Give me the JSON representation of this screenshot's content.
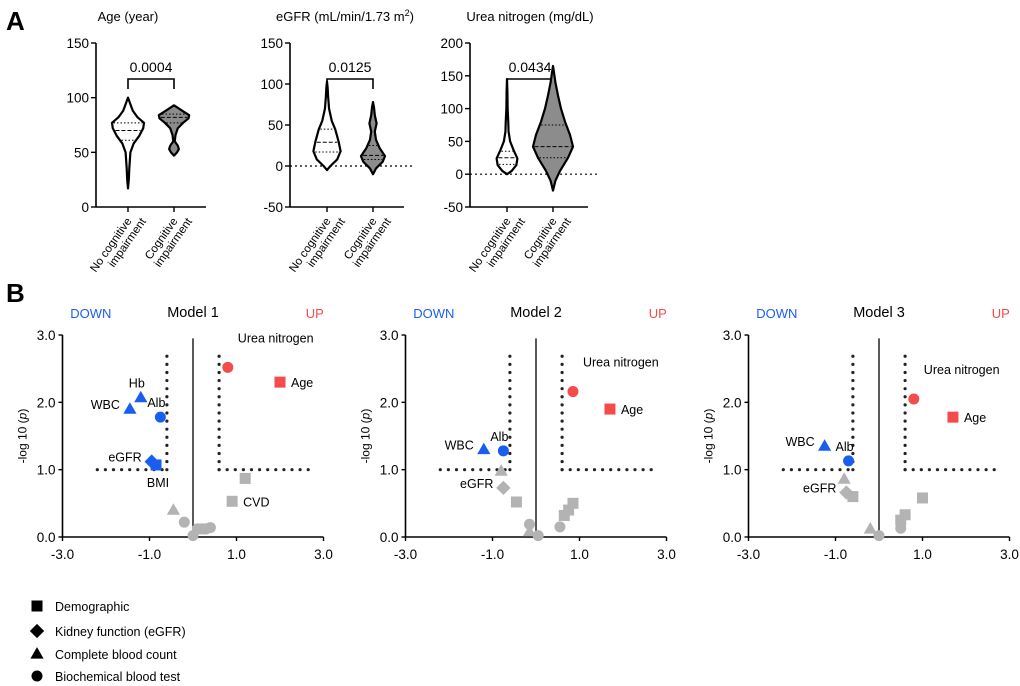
{
  "panel_labels": {
    "a": "A",
    "b": "B"
  },
  "colors": {
    "up": "#f44b4b",
    "down": "#1a5ef0",
    "ns": "#b3b3b3",
    "violin_ci": "#8c8c8c"
  },
  "chart_data": [
    {
      "type": "violin",
      "title": "Age (year)",
      "ylim": [
        0,
        150
      ],
      "yticks": [
        "0",
        "50",
        "100",
        "150"
      ],
      "ytick_values": [
        0,
        50,
        100,
        150
      ],
      "zero_line": false,
      "p_value": "0.0004",
      "groups": [
        {
          "name_line1": "No cognitive",
          "name_line2": "impairment",
          "filled": false,
          "median": 70,
          "q1": 61,
          "q3": 77,
          "peak": 1.0,
          "density": [
            [
              17,
              0
            ],
            [
              25,
              0.05
            ],
            [
              35,
              0.08
            ],
            [
              50,
              0.15
            ],
            [
              58,
              0.35
            ],
            [
              65,
              0.7
            ],
            [
              72,
              0.95
            ],
            [
              77,
              1
            ],
            [
              82,
              0.6
            ],
            [
              88,
              0.3
            ],
            [
              94,
              0.15
            ],
            [
              100,
              0
            ]
          ]
        },
        {
          "name_line1": "Cognitive",
          "name_line2": "impairment",
          "filled": true,
          "median": 82,
          "q1": 77,
          "q3": 85,
          "peak": 0.95,
          "density": [
            [
              47,
              0
            ],
            [
              50,
              0.2
            ],
            [
              53,
              0.32
            ],
            [
              56,
              0.25
            ],
            [
              60,
              0.05
            ],
            [
              66,
              0.1
            ],
            [
              72,
              0.25
            ],
            [
              77,
              0.6
            ],
            [
              81,
              0.95
            ],
            [
              84,
              1
            ],
            [
              88,
              0.55
            ],
            [
              93,
              0
            ]
          ]
        }
      ]
    },
    {
      "type": "violin",
      "title": "eGFR (mL/min/1.73 m",
      "title_sup": "2",
      "title_end": ")",
      "ylim": [
        -50,
        150
      ],
      "yticks": [
        "-50",
        "0",
        "50",
        "100",
        "150"
      ],
      "ytick_values": [
        -50,
        0,
        50,
        100,
        150
      ],
      "zero_line": true,
      "p_value": "0.0125",
      "groups": [
        {
          "name_line1": "No cognitive",
          "name_line2": "impairment",
          "filled": false,
          "median": 29,
          "q1": 17,
          "q3": 45,
          "peak": 0.85,
          "density": [
            [
              -5,
              0
            ],
            [
              0,
              0.25
            ],
            [
              8,
              0.75
            ],
            [
              18,
              1
            ],
            [
              30,
              0.85
            ],
            [
              45,
              0.6
            ],
            [
              55,
              0.35
            ],
            [
              70,
              0.15
            ],
            [
              85,
              0.08
            ],
            [
              95,
              0.05
            ],
            [
              103,
              0
            ]
          ]
        },
        {
          "name_line1": "Cognitive",
          "name_line2": "impairment",
          "filled": true,
          "median": 13,
          "q1": 8,
          "q3": 25,
          "peak": 0.75,
          "density": [
            [
              -10,
              0
            ],
            [
              -3,
              0.25
            ],
            [
              5,
              0.8
            ],
            [
              12,
              1
            ],
            [
              22,
              0.55
            ],
            [
              32,
              0.25
            ],
            [
              42,
              0.15
            ],
            [
              52,
              0.3
            ],
            [
              62,
              0.15
            ],
            [
              72,
              0.08
            ],
            [
              78,
              0
            ]
          ]
        }
      ]
    },
    {
      "type": "violin",
      "title": "Urea nitrogen (mg/dL)",
      "ylim": [
        -50,
        200
      ],
      "yticks": [
        "-50",
        "0",
        "50",
        "100",
        "150",
        "200"
      ],
      "ytick_values": [
        -50,
        0,
        50,
        100,
        150,
        200
      ],
      "zero_line": true,
      "p_value": "0.0434",
      "groups": [
        {
          "name_line1": "No cognitive",
          "name_line2": "impairment",
          "filled": false,
          "median": 25,
          "q1": 15,
          "q3": 35,
          "peak": 0.65,
          "density": [
            [
              0,
              0
            ],
            [
              5,
              0.45
            ],
            [
              14,
              0.9
            ],
            [
              24,
              1
            ],
            [
              36,
              0.65
            ],
            [
              50,
              0.3
            ],
            [
              65,
              0.15
            ],
            [
              80,
              0.12
            ],
            [
              100,
              0.06
            ],
            [
              125,
              0.04
            ],
            [
              145,
              0
            ]
          ]
        },
        {
          "name_line1": "Cognitive",
          "name_line2": "impairment",
          "filled": true,
          "median": 42,
          "q1": 25,
          "q3": 75,
          "peak": 1.25,
          "density": [
            [
              -25,
              0
            ],
            [
              -10,
              0.12
            ],
            [
              5,
              0.35
            ],
            [
              25,
              0.75
            ],
            [
              42,
              1
            ],
            [
              60,
              0.85
            ],
            [
              80,
              0.6
            ],
            [
              100,
              0.4
            ],
            [
              120,
              0.25
            ],
            [
              140,
              0.12
            ],
            [
              155,
              0.05
            ],
            [
              165,
              0
            ]
          ]
        }
      ]
    },
    {
      "type": "scatter",
      "title": "Model 1",
      "down_label": "DOWN",
      "up_label": "UP",
      "ylabel": "-log 10 (",
      "ylabel_italic": "p",
      "ylabel_end": ")",
      "xlim": [
        -3,
        3
      ],
      "ylim": [
        0,
        3
      ],
      "xticks": [
        "-3.0",
        "-1.0",
        "1.0",
        "3.0"
      ],
      "xtick_values": [
        -3,
        -1,
        1,
        3
      ],
      "yticks": [
        "0.0",
        "1.0",
        "2.0",
        "3.0"
      ],
      "ytick_values": [
        0,
        1,
        2,
        3
      ],
      "thresholds": {
        "x": [
          -0.6,
          0.6
        ],
        "y": 1.0
      },
      "points": [
        {
          "x": 0.8,
          "y": 2.52,
          "shape": "circle",
          "status": "up",
          "label": "Urea nitrogen",
          "label_side": "upper-right"
        },
        {
          "x": 2.0,
          "y": 2.3,
          "shape": "square",
          "status": "up",
          "label": "Age",
          "label_side": "right"
        },
        {
          "x": -1.2,
          "y": 2.07,
          "shape": "triangle",
          "status": "down",
          "label": "Hb",
          "label_side": "above"
        },
        {
          "x": -1.45,
          "y": 1.9,
          "shape": "triangle",
          "status": "down",
          "label": "WBC",
          "label_side": "left"
        },
        {
          "x": -0.75,
          "y": 1.78,
          "shape": "circle",
          "status": "down",
          "label": "Alb",
          "label_side": "above"
        },
        {
          "x": -0.95,
          "y": 1.12,
          "shape": "diamond",
          "status": "down",
          "label": "eGFR",
          "label_side": "left"
        },
        {
          "x": -0.85,
          "y": 1.07,
          "shape": "square",
          "status": "down",
          "label": "BMI",
          "label_side": "below"
        },
        {
          "x": 1.2,
          "y": 0.87,
          "shape": "square",
          "status": "ns"
        },
        {
          "x": 0.9,
          "y": 0.53,
          "shape": "square",
          "status": "ns",
          "label": "CVD",
          "label_side": "right"
        },
        {
          "x": -0.45,
          "y": 0.4,
          "shape": "triangle",
          "status": "ns"
        },
        {
          "x": -0.2,
          "y": 0.22,
          "shape": "circle",
          "status": "ns"
        },
        {
          "x": 0.0,
          "y": 0.02,
          "shape": "circle",
          "status": "ns"
        },
        {
          "x": 0.1,
          "y": 0.12,
          "shape": "circle",
          "status": "ns"
        },
        {
          "x": 0.2,
          "y": 0.12,
          "shape": "square",
          "status": "ns"
        },
        {
          "x": 0.3,
          "y": 0.12,
          "shape": "circle",
          "status": "ns"
        },
        {
          "x": 0.4,
          "y": 0.14,
          "shape": "circle",
          "status": "ns"
        }
      ]
    },
    {
      "type": "scatter",
      "title": "Model 2",
      "down_label": "DOWN",
      "up_label": "UP",
      "ylabel": "-log 10 (",
      "ylabel_italic": "p",
      "ylabel_end": ")",
      "xlim": [
        -3,
        3
      ],
      "ylim": [
        0,
        3
      ],
      "xticks": [
        "-3.0",
        "-1.0",
        "1.0",
        "3.0"
      ],
      "xtick_values": [
        -3,
        -1,
        1,
        3
      ],
      "yticks": [
        "0.0",
        "1.0",
        "2.0",
        "3.0"
      ],
      "ytick_values": [
        0,
        1,
        2,
        3
      ],
      "thresholds": {
        "x": [
          -0.6,
          0.6
        ],
        "y": 1.0
      },
      "points": [
        {
          "x": 0.85,
          "y": 2.16,
          "shape": "circle",
          "status": "up",
          "label": "Urea nitrogen",
          "label_side": "upper-right"
        },
        {
          "x": 1.7,
          "y": 1.9,
          "shape": "square",
          "status": "up",
          "label": "Age",
          "label_side": "right"
        },
        {
          "x": -1.2,
          "y": 1.3,
          "shape": "triangle",
          "status": "down",
          "label": "WBC",
          "label_side": "left"
        },
        {
          "x": -0.75,
          "y": 1.28,
          "shape": "circle",
          "status": "down",
          "label": "Alb",
          "label_side": "above"
        },
        {
          "x": -0.8,
          "y": 0.98,
          "shape": "triangle",
          "status": "ns"
        },
        {
          "x": -0.75,
          "y": 0.73,
          "shape": "diamond",
          "status": "ns",
          "label": "eGFR",
          "label_side": "left"
        },
        {
          "x": -0.45,
          "y": 0.52,
          "shape": "square",
          "status": "ns"
        },
        {
          "x": -0.15,
          "y": 0.19,
          "shape": "circle",
          "status": "ns"
        },
        {
          "x": -0.15,
          "y": 0.08,
          "shape": "triangle",
          "status": "ns"
        },
        {
          "x": 0.05,
          "y": 0.02,
          "shape": "circle",
          "status": "ns"
        },
        {
          "x": 0.55,
          "y": 0.15,
          "shape": "circle",
          "status": "ns"
        },
        {
          "x": 0.65,
          "y": 0.32,
          "shape": "square",
          "status": "ns"
        },
        {
          "x": 0.75,
          "y": 0.4,
          "shape": "square",
          "status": "ns"
        },
        {
          "x": 0.85,
          "y": 0.5,
          "shape": "square",
          "status": "ns"
        }
      ]
    },
    {
      "type": "scatter",
      "title": "Model 3",
      "down_label": "DOWN",
      "up_label": "UP",
      "ylabel": "-log 10 (",
      "ylabel_italic": "p",
      "ylabel_end": ")",
      "xlim": [
        -3,
        3
      ],
      "ylim": [
        0,
        3
      ],
      "xticks": [
        "-3.0",
        "-1.0",
        "1.0",
        "3.0"
      ],
      "xtick_values": [
        -3,
        -1,
        1,
        3
      ],
      "yticks": [
        "0.0",
        "1.0",
        "2.0",
        "3.0"
      ],
      "ytick_values": [
        0,
        1,
        2,
        3
      ],
      "thresholds": {
        "x": [
          -0.6,
          0.6
        ],
        "y": 1.0
      },
      "points": [
        {
          "x": 0.8,
          "y": 2.05,
          "shape": "circle",
          "status": "up",
          "label": "Urea nitrogen",
          "label_side": "upper-right"
        },
        {
          "x": 1.7,
          "y": 1.78,
          "shape": "square",
          "status": "up",
          "label": "Age",
          "label_side": "right"
        },
        {
          "x": -1.25,
          "y": 1.35,
          "shape": "triangle",
          "status": "down",
          "label": "WBC",
          "label_side": "left"
        },
        {
          "x": -0.7,
          "y": 1.13,
          "shape": "circle",
          "status": "down",
          "label": "Alb",
          "label_side": "above"
        },
        {
          "x": -0.8,
          "y": 0.86,
          "shape": "triangle",
          "status": "ns"
        },
        {
          "x": -0.75,
          "y": 0.66,
          "shape": "diamond",
          "status": "ns",
          "label": "eGFR",
          "label_side": "left"
        },
        {
          "x": -0.6,
          "y": 0.6,
          "shape": "square",
          "status": "ns"
        },
        {
          "x": -0.2,
          "y": 0.12,
          "shape": "triangle",
          "status": "ns"
        },
        {
          "x": 0.0,
          "y": 0.02,
          "shape": "circle",
          "status": "ns"
        },
        {
          "x": 0.5,
          "y": 0.13,
          "shape": "circle",
          "status": "ns"
        },
        {
          "x": 0.5,
          "y": 0.25,
          "shape": "square",
          "status": "ns"
        },
        {
          "x": 0.6,
          "y": 0.33,
          "shape": "square",
          "status": "ns"
        },
        {
          "x": 1.0,
          "y": 0.58,
          "shape": "square",
          "status": "ns"
        }
      ]
    }
  ],
  "legend": [
    {
      "shape": "square",
      "label": "Demographic"
    },
    {
      "shape": "diamond",
      "label": "Kidney function (eGFR)"
    },
    {
      "shape": "triangle",
      "label": "Complete blood count"
    },
    {
      "shape": "circle",
      "label": "Biochemical blood test"
    }
  ]
}
